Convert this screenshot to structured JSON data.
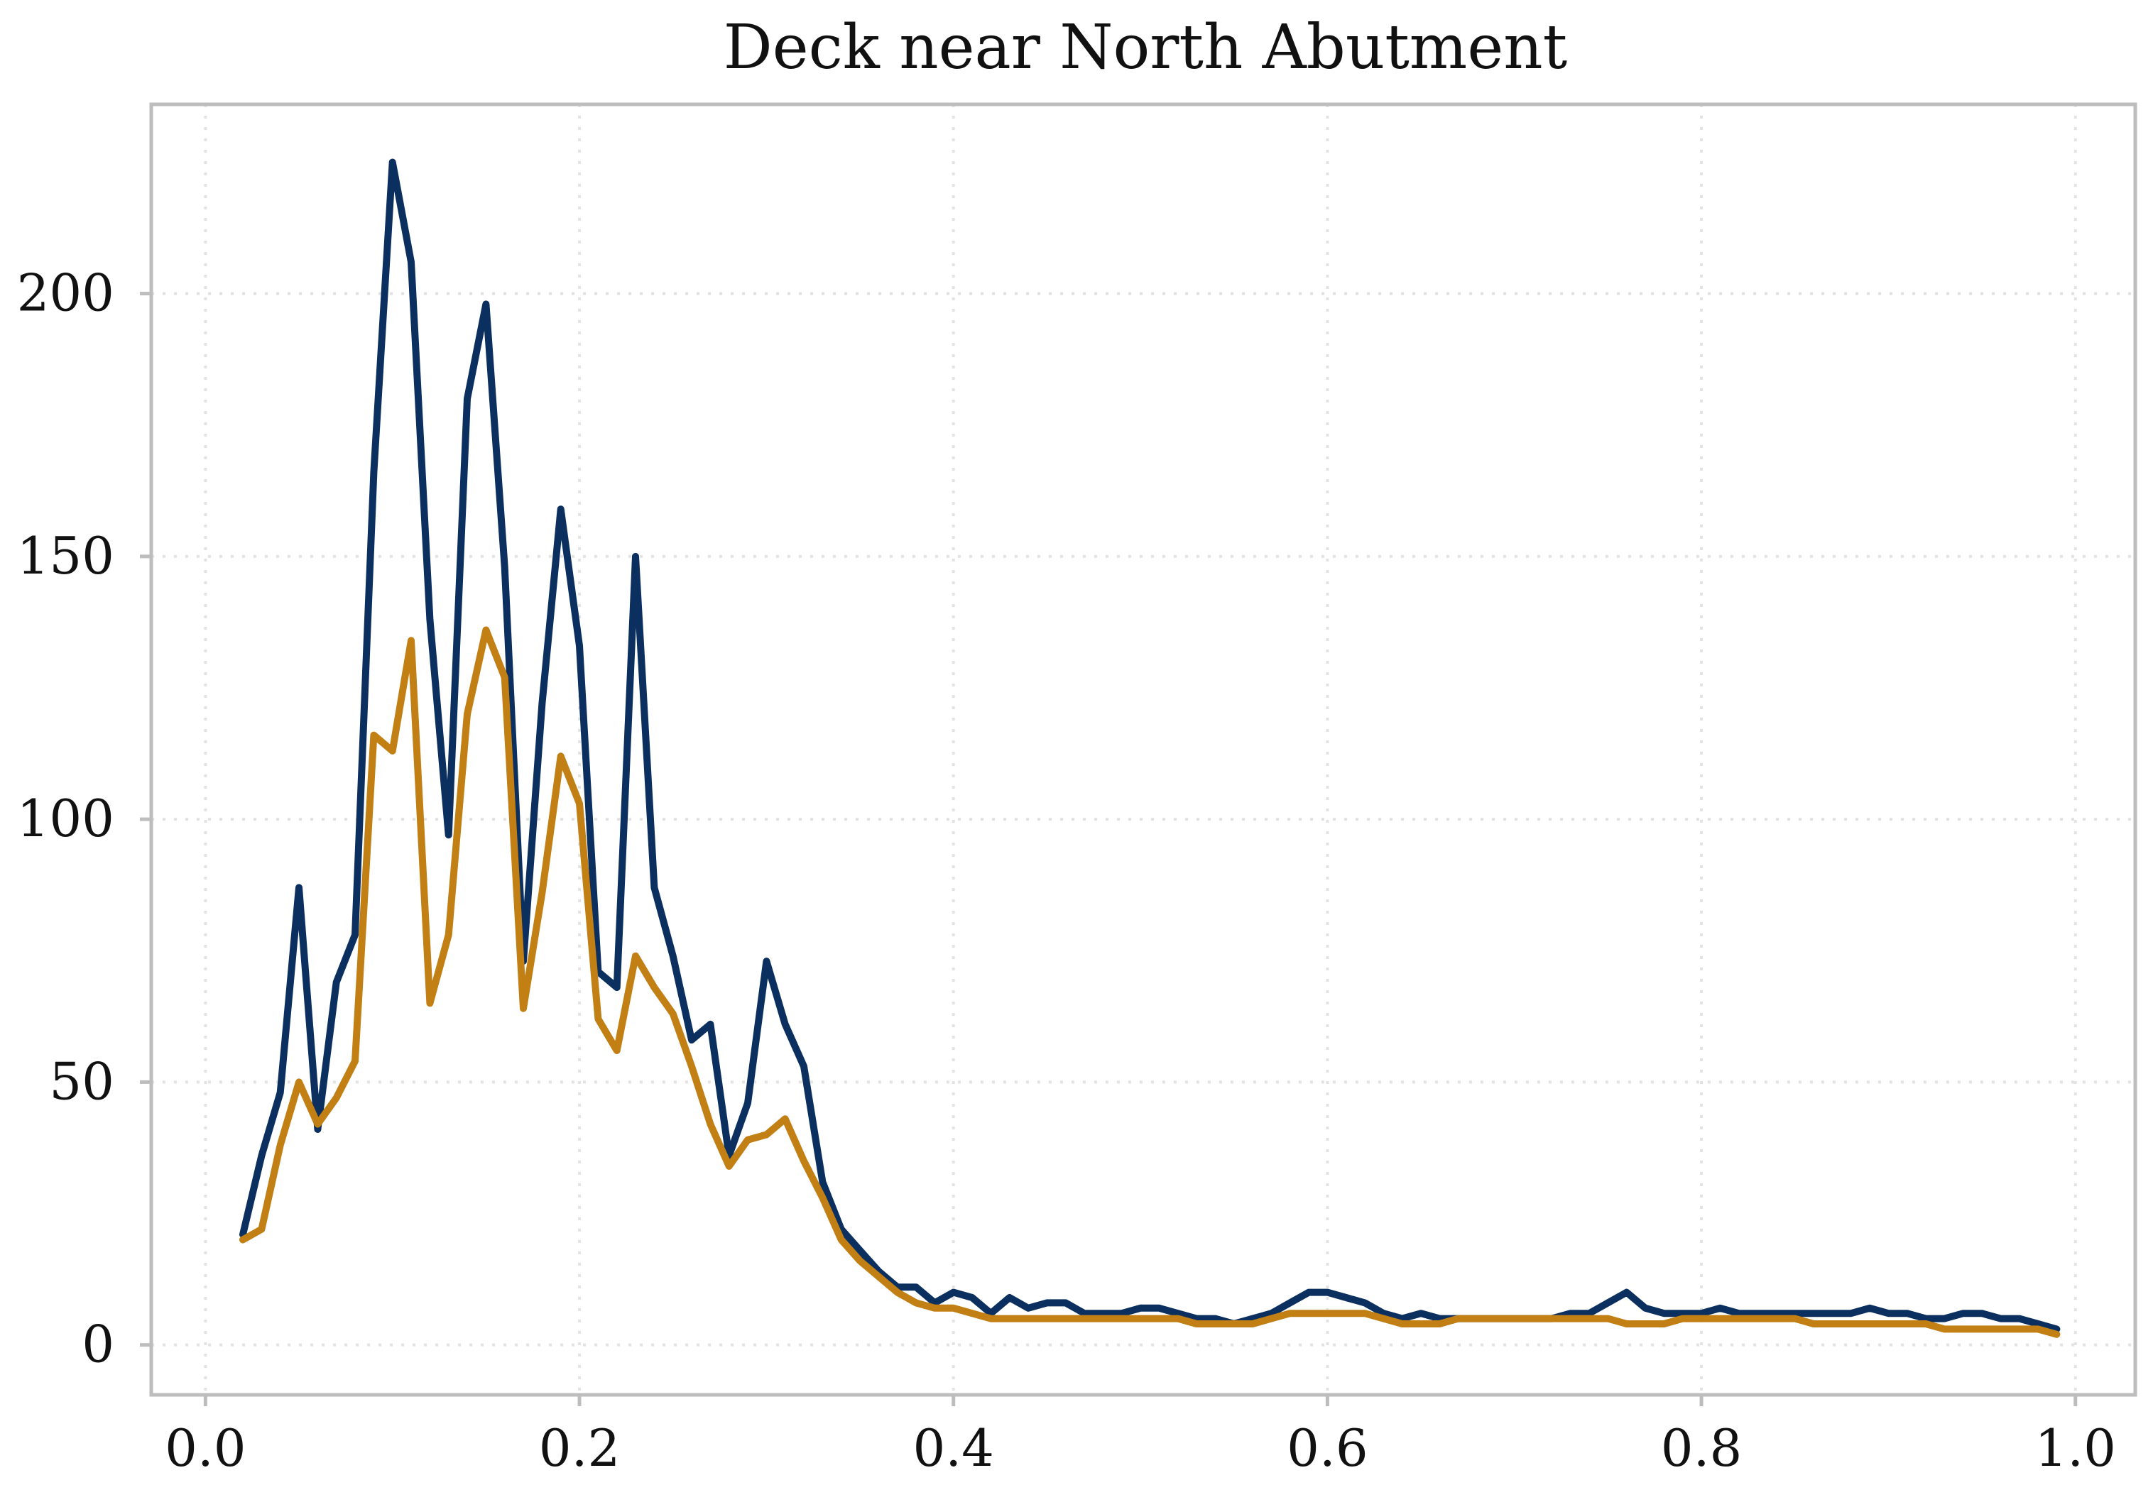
{
  "chart_data": {
    "type": "line",
    "title": "Deck near North Abutment",
    "xlabel": "",
    "ylabel": "",
    "xlim": [
      -0.029,
      1.032
    ],
    "ylim": [
      -9.5,
      236
    ],
    "x_ticks": [
      0.0,
      0.2,
      0.4,
      0.6,
      0.8,
      1.0
    ],
    "x_tick_labels": [
      "0.0",
      "0.2",
      "0.4",
      "0.6",
      "0.8",
      "1.0"
    ],
    "y_ticks": [
      0,
      50,
      100,
      150,
      200
    ],
    "y_tick_labels": [
      "0",
      "50",
      "100",
      "150",
      "200"
    ],
    "grid": true,
    "x": [
      0.02,
      0.03,
      0.04,
      0.05,
      0.06,
      0.07,
      0.08,
      0.09,
      0.1,
      0.11,
      0.12,
      0.13,
      0.14,
      0.15,
      0.16,
      0.17,
      0.18,
      0.19,
      0.2,
      0.21,
      0.22,
      0.23,
      0.24,
      0.25,
      0.26,
      0.27,
      0.28,
      0.29,
      0.3,
      0.31,
      0.32,
      0.33,
      0.34,
      0.35,
      0.36,
      0.37,
      0.38,
      0.39,
      0.4,
      0.41,
      0.42,
      0.43,
      0.44,
      0.45,
      0.46,
      0.47,
      0.48,
      0.49,
      0.5,
      0.51,
      0.52,
      0.53,
      0.54,
      0.55,
      0.56,
      0.57,
      0.58,
      0.59,
      0.6,
      0.61,
      0.62,
      0.63,
      0.64,
      0.65,
      0.66,
      0.67,
      0.68,
      0.69,
      0.7,
      0.71,
      0.72,
      0.73,
      0.74,
      0.75,
      0.76,
      0.77,
      0.78,
      0.79,
      0.8,
      0.81,
      0.82,
      0.83,
      0.84,
      0.85,
      0.86,
      0.87,
      0.88,
      0.89,
      0.9,
      0.91,
      0.92,
      0.93,
      0.94,
      0.95,
      0.96,
      0.97,
      0.98,
      0.99
    ],
    "series": [
      {
        "color": "#0b3060",
        "values": [
          21,
          36,
          48,
          87,
          41,
          69,
          78,
          166,
          225,
          206,
          138,
          97,
          180,
          198,
          148,
          73,
          122,
          159,
          133,
          71,
          68,
          150,
          87,
          74,
          58,
          61,
          36,
          46,
          73,
          61,
          53,
          31,
          22,
          18,
          14,
          11,
          11,
          8,
          10,
          9,
          6,
          9,
          7,
          8,
          8,
          6,
          6,
          6,
          7,
          7,
          6,
          5,
          5,
          4,
          5,
          6,
          8,
          10,
          10,
          9,
          8,
          6,
          5,
          6,
          5,
          5,
          5,
          5,
          5,
          5,
          5,
          6,
          6,
          8,
          10,
          7,
          6,
          6,
          6,
          7,
          6,
          6,
          6,
          6,
          6,
          6,
          6,
          7,
          6,
          6,
          5,
          5,
          6,
          6,
          5,
          5,
          4,
          3
        ]
      },
      {
        "color": "#c27f14",
        "values": [
          20,
          22,
          38,
          50,
          42,
          47,
          54,
          116,
          113,
          134,
          65,
          78,
          120,
          136,
          127,
          64,
          86,
          112,
          103,
          62,
          56,
          74,
          68,
          63,
          53,
          42,
          34,
          39,
          40,
          43,
          35,
          28,
          20,
          16,
          13,
          10,
          8,
          7,
          7,
          6,
          5,
          5,
          5,
          5,
          5,
          5,
          5,
          5,
          5,
          5,
          5,
          4,
          4,
          4,
          4,
          5,
          6,
          6,
          6,
          6,
          6,
          5,
          4,
          4,
          4,
          5,
          5,
          5,
          5,
          5,
          5,
          5,
          5,
          5,
          4,
          4,
          4,
          5,
          5,
          5,
          5,
          5,
          5,
          5,
          4,
          4,
          4,
          4,
          4,
          4,
          4,
          3,
          3,
          3,
          3,
          3,
          3,
          2
        ]
      }
    ]
  }
}
